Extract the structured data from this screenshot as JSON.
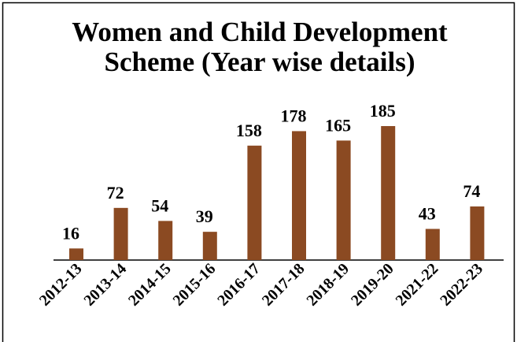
{
  "chart_data": {
    "type": "bar",
    "title": "Women and Child Development Scheme (Year wise details)",
    "categories": [
      "2012-13",
      "2013-14",
      "2014-15",
      "2015-16",
      "2016-17",
      "2017-18",
      "2018-19",
      "2019-20",
      "2021-22",
      "2022-23"
    ],
    "values": [
      16,
      72,
      54,
      39,
      158,
      178,
      165,
      185,
      43,
      74
    ],
    "color": "#8b4a22"
  }
}
